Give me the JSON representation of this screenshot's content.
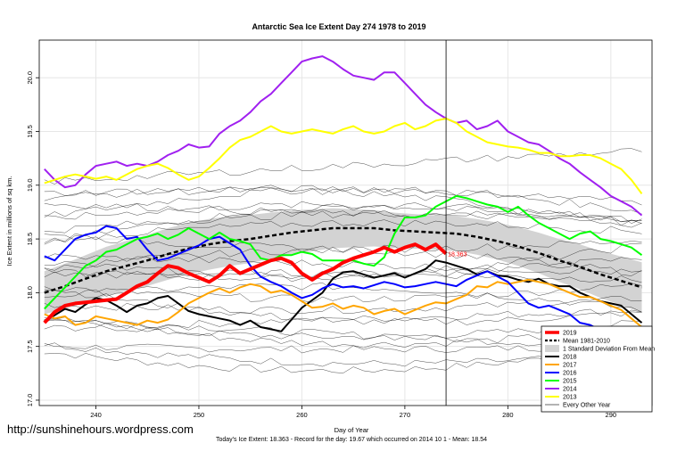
{
  "watermark": "http://sunshinehours.wordpress.com",
  "footer": "Today's Ice Extent: 18.363  - Record for the day: 19.67 which occurred on 2014 10 1  - Mean: 18.54",
  "chart_data": {
    "type": "line",
    "title": "Antarctic Sea Ice Extent Day 274 1978 to 2019",
    "xlabel": "Day of Year",
    "ylabel": "Ice Extent in millions of sq km.",
    "xlim": [
      234.5,
      294
    ],
    "ylim": [
      16.95,
      20.35
    ],
    "xticks": [
      240,
      250,
      260,
      270,
      280,
      290
    ],
    "yticks": [
      17.0,
      17.5,
      18.0,
      18.5,
      19.0,
      19.5,
      20.0
    ],
    "ytick_labels": [
      "17.0",
      "17.5",
      "18.0",
      "18.5",
      "19.0",
      "19.5",
      "20.0"
    ],
    "grid": true,
    "vline_x": 274,
    "annotation": {
      "text": "18.363",
      "x": 274,
      "y": 18.363,
      "color": "#ff0000"
    },
    "legend_position": "bottom-right",
    "legend": [
      {
        "label": "2019",
        "color": "#ff0000",
        "style": "thick"
      },
      {
        "label": "Mean 1981-2010",
        "color": "#000000",
        "style": "dashed"
      },
      {
        "label": "1 Standard Deviation From Mean",
        "color": "#d3d3d3",
        "style": "box"
      },
      {
        "label": "2018",
        "color": "#000000",
        "style": "line"
      },
      {
        "label": "2017",
        "color": "#ffa500",
        "style": "line"
      },
      {
        "label": "2016",
        "color": "#0000ff",
        "style": "line"
      },
      {
        "label": "2015",
        "color": "#00ff00",
        "style": "line"
      },
      {
        "label": "2014",
        "color": "#a020f0",
        "style": "line"
      },
      {
        "label": "2013",
        "color": "#ffff00",
        "style": "line"
      },
      {
        "label": "Every Other Year",
        "color": "#000000",
        "style": "thin"
      }
    ],
    "series": [
      {
        "name": "2019",
        "color": "#ff0000",
        "width": 4,
        "dash": "",
        "x": [
          235,
          236,
          237,
          238,
          239,
          240,
          241,
          242,
          243,
          244,
          245,
          246,
          247,
          248,
          249,
          250,
          251,
          252,
          253,
          254,
          255,
          256,
          257,
          258,
          259,
          260,
          261,
          262,
          263,
          264,
          265,
          266,
          267,
          268,
          269,
          270,
          271,
          272,
          273,
          274
        ],
        "y": [
          17.72,
          17.82,
          17.88,
          17.9,
          17.91,
          17.92,
          17.93,
          17.94,
          18.0,
          18.06,
          18.1,
          18.18,
          18.25,
          18.23,
          18.18,
          18.14,
          18.1,
          18.16,
          18.25,
          18.18,
          18.22,
          18.26,
          18.3,
          18.32,
          18.28,
          18.18,
          18.12,
          18.18,
          18.22,
          18.28,
          18.32,
          18.35,
          18.38,
          18.42,
          18.38,
          18.42,
          18.45,
          18.4,
          18.45,
          18.363
        ]
      },
      {
        "name": "Mean 1981-2010",
        "color": "#000000",
        "width": 2.5,
        "dash": "5,3",
        "x": [
          235,
          237,
          239,
          241,
          243,
          245,
          247,
          249,
          251,
          253,
          255,
          257,
          259,
          261,
          263,
          265,
          267,
          269,
          271,
          273,
          275,
          277,
          279,
          281,
          283,
          285,
          287,
          289,
          291,
          293
        ],
        "y": [
          18.0,
          18.06,
          18.13,
          18.2,
          18.25,
          18.3,
          18.36,
          18.41,
          18.45,
          18.48,
          18.5,
          18.53,
          18.56,
          18.58,
          18.6,
          18.6,
          18.6,
          18.58,
          18.57,
          18.56,
          18.55,
          18.52,
          18.48,
          18.43,
          18.37,
          18.3,
          18.24,
          18.17,
          18.11,
          18.05
        ]
      },
      {
        "name": "2018",
        "color": "#000000",
        "width": 2,
        "dash": "",
        "x": [
          235,
          236,
          237,
          238,
          239,
          240,
          241,
          242,
          243,
          244,
          245,
          246,
          247,
          248,
          249,
          250,
          251,
          252,
          253,
          254,
          255,
          256,
          257,
          258,
          259,
          260,
          261,
          262,
          263,
          264,
          265,
          266,
          267,
          268,
          269,
          270,
          271,
          272,
          273,
          274,
          275,
          276,
          277,
          278,
          279,
          280,
          281,
          282,
          283,
          284,
          285,
          286,
          287,
          288,
          289,
          290,
          291,
          292,
          293
        ],
        "y": [
          17.74,
          17.79,
          17.85,
          17.82,
          17.89,
          17.95,
          17.93,
          17.88,
          17.82,
          17.88,
          17.9,
          17.95,
          17.97,
          17.9,
          17.83,
          17.8,
          17.78,
          17.76,
          17.74,
          17.7,
          17.74,
          17.68,
          17.66,
          17.64,
          17.75,
          17.86,
          17.93,
          18.0,
          18.13,
          18.19,
          18.2,
          18.17,
          18.14,
          18.16,
          18.18,
          18.14,
          18.18,
          18.22,
          18.3,
          18.28,
          18.25,
          18.22,
          18.17,
          18.2,
          18.16,
          18.15,
          18.12,
          18.1,
          18.13,
          18.08,
          18.06,
          18.06,
          18.0,
          17.96,
          17.92,
          17.9,
          17.88,
          17.8,
          17.72
        ]
      },
      {
        "name": "2017",
        "color": "#ffa500",
        "width": 2,
        "dash": "",
        "x": [
          235,
          236,
          237,
          238,
          239,
          240,
          241,
          242,
          243,
          244,
          245,
          246,
          247,
          248,
          249,
          250,
          251,
          252,
          253,
          254,
          255,
          256,
          257,
          258,
          259,
          260,
          261,
          262,
          263,
          264,
          265,
          266,
          267,
          268,
          269,
          270,
          271,
          272,
          273,
          274,
          275,
          276,
          277,
          278,
          279,
          280,
          281,
          282,
          283,
          284,
          285,
          286,
          287,
          288,
          289,
          290,
          291,
          292,
          293
        ],
        "y": [
          17.8,
          17.76,
          17.78,
          17.7,
          17.72,
          17.78,
          17.76,
          17.74,
          17.72,
          17.7,
          17.74,
          17.72,
          17.75,
          17.82,
          17.9,
          17.95,
          18.0,
          18.04,
          18.0,
          18.05,
          18.08,
          18.06,
          18.0,
          18.02,
          17.98,
          17.92,
          17.86,
          17.87,
          17.9,
          17.85,
          17.88,
          17.86,
          17.8,
          17.83,
          17.85,
          17.8,
          17.84,
          17.88,
          17.91,
          17.9,
          17.94,
          17.98,
          18.06,
          18.05,
          18.1,
          18.08,
          18.1,
          18.12,
          18.1,
          18.08,
          18.04,
          18.0,
          17.96,
          17.96,
          17.92,
          17.88,
          17.84,
          17.76,
          17.68
        ]
      },
      {
        "name": "2016",
        "color": "#0000ff",
        "width": 2,
        "dash": "",
        "x": [
          235,
          236,
          237,
          238,
          239,
          240,
          241,
          242,
          243,
          244,
          245,
          246,
          247,
          248,
          249,
          250,
          251,
          252,
          253,
          254,
          255,
          256,
          257,
          258,
          259,
          260,
          261,
          262,
          263,
          264,
          265,
          266,
          267,
          268,
          269,
          270,
          271,
          272,
          273,
          274,
          275,
          276,
          277,
          278,
          279,
          280,
          281,
          282,
          283,
          284,
          285,
          286,
          287,
          288,
          289,
          290,
          291,
          292,
          293
        ],
        "y": [
          18.34,
          18.3,
          18.4,
          18.5,
          18.54,
          18.56,
          18.62,
          18.6,
          18.5,
          18.52,
          18.4,
          18.3,
          18.32,
          18.36,
          18.4,
          18.44,
          18.5,
          18.52,
          18.46,
          18.4,
          18.25,
          18.15,
          18.1,
          18.06,
          18.0,
          17.95,
          17.98,
          18.04,
          18.08,
          18.05,
          18.06,
          18.04,
          18.07,
          18.1,
          18.08,
          18.05,
          18.06,
          18.08,
          18.1,
          18.08,
          18.06,
          18.12,
          18.16,
          18.2,
          18.15,
          18.1,
          18.0,
          17.9,
          17.86,
          17.88,
          17.84,
          17.8,
          17.72,
          17.7,
          17.65,
          17.55,
          17.45,
          17.38,
          17.32
        ]
      },
      {
        "name": "2015",
        "color": "#00ff00",
        "width": 2,
        "dash": "",
        "x": [
          235,
          236,
          237,
          238,
          239,
          240,
          241,
          242,
          243,
          244,
          245,
          246,
          247,
          248,
          249,
          250,
          251,
          252,
          253,
          254,
          255,
          256,
          257,
          258,
          259,
          260,
          261,
          262,
          263,
          264,
          265,
          266,
          267,
          268,
          269,
          270,
          271,
          272,
          273,
          274,
          275,
          276,
          277,
          278,
          279,
          280,
          281,
          282,
          283,
          284,
          285,
          286,
          287,
          288,
          289,
          290,
          291,
          292,
          293
        ],
        "y": [
          17.85,
          17.95,
          18.05,
          18.15,
          18.25,
          18.3,
          18.38,
          18.4,
          18.45,
          18.5,
          18.52,
          18.55,
          18.5,
          18.54,
          18.6,
          18.55,
          18.5,
          18.56,
          18.5,
          18.48,
          18.45,
          18.32,
          18.3,
          18.35,
          18.35,
          18.38,
          18.36,
          18.3,
          18.3,
          18.3,
          18.3,
          18.27,
          18.25,
          18.33,
          18.55,
          18.7,
          18.7,
          18.72,
          18.8,
          18.85,
          18.9,
          18.88,
          18.85,
          18.82,
          18.8,
          18.75,
          18.8,
          18.72,
          18.65,
          18.6,
          18.55,
          18.5,
          18.55,
          18.57,
          18.5,
          18.48,
          18.45,
          18.42,
          18.35
        ]
      },
      {
        "name": "2014",
        "color": "#a020f0",
        "width": 2,
        "dash": "",
        "x": [
          235,
          236,
          237,
          238,
          239,
          240,
          241,
          242,
          243,
          244,
          245,
          246,
          247,
          248,
          249,
          250,
          251,
          252,
          253,
          254,
          255,
          256,
          257,
          258,
          259,
          260,
          261,
          262,
          263,
          264,
          265,
          266,
          267,
          268,
          269,
          270,
          271,
          272,
          273,
          274,
          275,
          276,
          277,
          278,
          279,
          280,
          281,
          282,
          283,
          284,
          285,
          286,
          287,
          288,
          289,
          290,
          291,
          292,
          293
        ],
        "y": [
          19.15,
          19.05,
          18.98,
          19.0,
          19.1,
          19.18,
          19.2,
          19.22,
          19.18,
          19.2,
          19.18,
          19.22,
          19.28,
          19.32,
          19.38,
          19.35,
          19.36,
          19.48,
          19.55,
          19.6,
          19.68,
          19.78,
          19.85,
          19.95,
          20.05,
          20.15,
          20.18,
          20.2,
          20.15,
          20.08,
          20.02,
          20.0,
          19.98,
          20.05,
          20.05,
          19.95,
          19.85,
          19.75,
          19.68,
          19.62,
          19.58,
          19.6,
          19.52,
          19.55,
          19.6,
          19.5,
          19.45,
          19.4,
          19.38,
          19.32,
          19.25,
          19.2,
          19.12,
          19.05,
          18.98,
          18.9,
          18.85,
          18.8,
          18.72
        ]
      },
      {
        "name": "2013",
        "color": "#ffff00",
        "width": 2,
        "dash": "",
        "x": [
          235,
          236,
          237,
          238,
          239,
          240,
          241,
          242,
          243,
          244,
          245,
          246,
          247,
          248,
          249,
          250,
          251,
          252,
          253,
          254,
          255,
          256,
          257,
          258,
          259,
          260,
          261,
          262,
          263,
          264,
          265,
          266,
          267,
          268,
          269,
          270,
          271,
          272,
          273,
          274,
          275,
          276,
          277,
          278,
          279,
          280,
          281,
          282,
          283,
          284,
          285,
          286,
          287,
          288,
          289,
          290,
          291,
          292,
          293
        ],
        "y": [
          19.02,
          19.05,
          19.08,
          19.1,
          19.08,
          19.06,
          19.08,
          19.05,
          19.1,
          19.15,
          19.18,
          19.2,
          19.16,
          19.1,
          19.05,
          19.08,
          19.16,
          19.25,
          19.35,
          19.42,
          19.45,
          19.5,
          19.55,
          19.5,
          19.48,
          19.5,
          19.52,
          19.5,
          19.48,
          19.52,
          19.55,
          19.5,
          19.48,
          19.5,
          19.55,
          19.58,
          19.52,
          19.55,
          19.6,
          19.62,
          19.58,
          19.5,
          19.45,
          19.4,
          19.38,
          19.36,
          19.35,
          19.33,
          19.3,
          19.3,
          19.27,
          19.27,
          19.28,
          19.28,
          19.25,
          19.2,
          19.15,
          19.05,
          18.92
        ]
      }
    ]
  }
}
